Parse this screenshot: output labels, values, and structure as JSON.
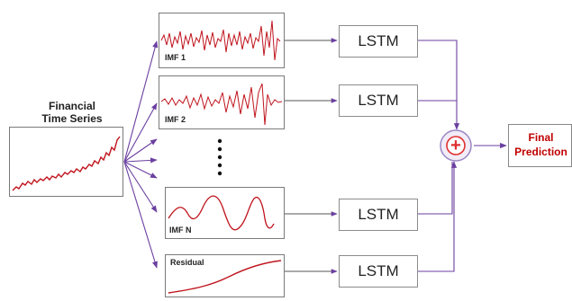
{
  "input": {
    "title_line1": "Financial",
    "title_line2": "Time Series"
  },
  "components": [
    {
      "name": "IMF 1"
    },
    {
      "name": "IMF 2"
    },
    {
      "name": "IMF N"
    },
    {
      "name": "Residual"
    }
  ],
  "models": [
    {
      "label": "LSTM"
    },
    {
      "label": "LSTM"
    },
    {
      "label": "LSTM"
    },
    {
      "label": "LSTM"
    }
  ],
  "aggregator": {
    "symbol": "+"
  },
  "output": {
    "line1": "Final",
    "line2": "Prediction"
  },
  "colors": {
    "signal": "#c0141d",
    "arrow": "#6b3fa0",
    "output_text": "#c00000",
    "aggregator": "#e03030"
  }
}
